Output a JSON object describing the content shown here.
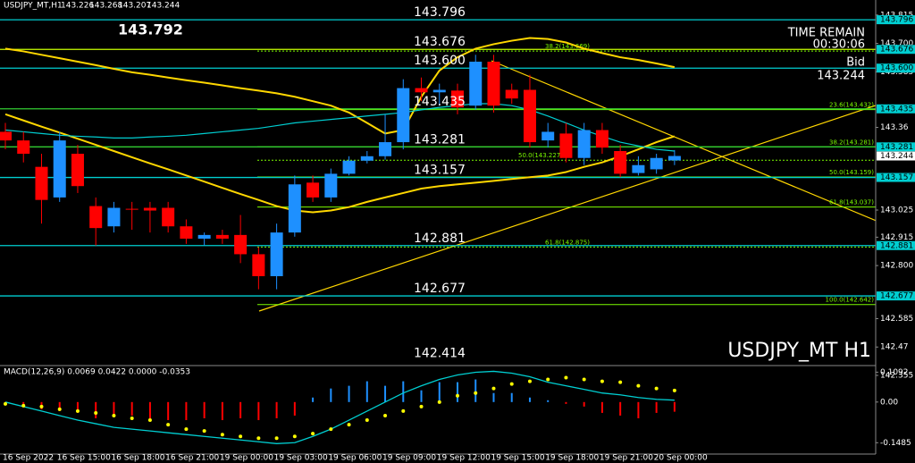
{
  "chart_data": [
    {
      "type": "candlestick",
      "symbol": "USDJPY_MT,H1",
      "max_label": "143.792",
      "time_remain_label": "TIME REMAIN",
      "time_remain": "00:30:06",
      "bid_label": "Bid",
      "watermark": "USDJPY_MT H1",
      "categories": [
        "16 Sep 2022",
        null,
        null,
        "16 Sep 15:00",
        null,
        null,
        "16 Sep 18:00",
        null,
        null,
        "16 Sep 21:00",
        null,
        null,
        "19 Sep 00:00",
        null,
        null,
        "19 Sep 03:00",
        null,
        null,
        "19 Sep 06:00",
        null,
        null,
        "19 Sep 09:00",
        null,
        null,
        "19 Sep 12:00",
        null,
        null,
        "19 Sep 15:00",
        null,
        null,
        "19 Sep 18:00",
        null,
        null,
        "19 Sep 21:00",
        null,
        null,
        "20 Sep 00:00",
        null
      ],
      "open": [
        143.342,
        143.307,
        143.2,
        143.076,
        143.253,
        143.041,
        142.959,
        143.03,
        143.034,
        143.034,
        142.959,
        142.909,
        142.924,
        142.924,
        142.846,
        142.757,
        142.934,
        143.136,
        143.076,
        143.172,
        143.225,
        143.243,
        143.3,
        143.519,
        143.502,
        143.509,
        143.448,
        143.626,
        143.512,
        143.512,
        143.307,
        143.335,
        143.236,
        143.349,
        143.264,
        143.175,
        143.19,
        143.226
      ],
      "high": [
        143.378,
        143.342,
        143.253,
        143.342,
        143.289,
        143.076,
        143.058,
        143.058,
        143.058,
        143.058,
        142.987,
        142.934,
        142.945,
        143.005,
        142.874,
        142.97,
        143.165,
        143.165,
        143.193,
        143.243,
        143.264,
        143.413,
        143.555,
        143.562,
        143.537,
        143.537,
        143.654,
        143.654,
        143.537,
        143.573,
        143.378,
        143.378,
        143.378,
        143.378,
        143.289,
        143.243,
        143.253,
        143.268
      ],
      "low": [
        143.271,
        143.218,
        142.97,
        143.058,
        143.094,
        142.881,
        142.934,
        142.945,
        142.934,
        142.934,
        142.888,
        142.881,
        142.888,
        142.81,
        142.704,
        142.704,
        142.917,
        143.058,
        143.058,
        143.165,
        143.214,
        143.229,
        143.271,
        143.466,
        143.448,
        143.413,
        143.431,
        143.42,
        143.456,
        143.278,
        143.278,
        143.218,
        143.207,
        143.253,
        143.158,
        143.165,
        143.172,
        143.207
      ],
      "close": [
        143.307,
        143.253,
        143.066,
        143.307,
        143.122,
        142.952,
        143.034,
        143.027,
        143.023,
        142.959,
        142.909,
        142.924,
        142.909,
        142.846,
        142.757,
        142.934,
        143.129,
        143.076,
        143.172,
        143.225,
        143.243,
        143.3,
        143.519,
        143.502,
        143.512,
        143.441,
        143.626,
        143.448,
        143.477,
        143.3,
        143.342,
        143.236,
        143.349,
        143.278,
        143.172,
        143.207,
        143.236,
        143.244
      ],
      "up_color": "#1e90ff",
      "down_color": "#ff0000",
      "ylim": [
        142.355,
        143.876
      ],
      "yticks": [
        143.815,
        {
          "value": 143.7,
          "label": "143.700"
        },
        143.585,
        143.36,
        143.025,
        142.915,
        {
          "value": 142.8,
          "label": "142.800"
        },
        142.585,
        142.47,
        142.355
      ],
      "levels": [
        143.796,
        143.676,
        {
          "value": 143.6,
          "label": "143.600"
        },
        143.435,
        143.281,
        143.157,
        142.881,
        142.677,
        142.414
      ],
      "level_colors": [
        "#00ced1",
        "#c8ff00",
        "#00ced1",
        "#32cd32",
        "#32cd32",
        "#00ced1",
        "#00ced1",
        "#00ced1",
        "#000000"
      ],
      "tag_color": "#00ced1",
      "fib_levels": [
        {
          "value": 143.669,
          "label": "38.2(143.669)"
        },
        {
          "value": 143.432,
          "label": "23.6(143.432)"
        },
        {
          "value": 143.281,
          "label": "38.2(143.281)"
        },
        {
          "value": 143.227,
          "label": "50.0(143.227)"
        },
        {
          "value": 143.159,
          "label": "50.0(143.159)"
        },
        {
          "value": 143.037,
          "label": "61.8(143.037)"
        },
        {
          "value": 142.875,
          "label": "61.8(142.875)"
        },
        {
          "value": 142.642,
          "label": "100.0(142.642)"
        }
      ],
      "fib_color": "#7cfc00",
      "series": [
        {
          "color": "#ffd700",
          "values": [
            143.679,
            143.668,
            143.654,
            143.64,
            143.626,
            143.612,
            143.597,
            143.583,
            143.573,
            143.562,
            143.551,
            143.541,
            143.53,
            143.519,
            143.509,
            143.498,
            143.484,
            143.466,
            143.448,
            143.42,
            143.378,
            143.335,
            143.349,
            143.484,
            143.59,
            143.644,
            143.679,
            143.697,
            143.711,
            143.722,
            143.718,
            143.704,
            143.679,
            143.661,
            143.644,
            143.633,
            143.619,
            143.604
          ]
        },
        {
          "color": "#ffd700",
          "values": [
            143.413,
            143.388,
            143.363,
            143.339,
            143.314,
            143.289,
            143.264,
            143.239,
            143.214,
            143.19,
            143.165,
            143.14,
            143.115,
            143.09,
            143.066,
            143.041,
            143.023,
            143.016,
            143.023,
            143.037,
            143.058,
            143.076,
            143.094,
            143.112,
            143.122,
            143.129,
            143.136,
            143.143,
            143.151,
            143.158,
            143.165,
            143.179,
            143.2,
            143.218,
            143.243,
            143.271,
            143.3,
            143.324
          ]
        },
        {
          "color": "#00ced1",
          "values": [
            143.349,
            143.342,
            143.335,
            143.328,
            143.324,
            143.321,
            143.317,
            143.317,
            143.321,
            143.324,
            143.328,
            143.335,
            143.342,
            143.349,
            143.356,
            143.367,
            143.378,
            143.385,
            143.392,
            143.399,
            143.406,
            143.413,
            143.42,
            143.431,
            143.441,
            143.448,
            143.456,
            143.456,
            143.448,
            143.431,
            143.406,
            143.378,
            143.349,
            143.324,
            143.3,
            143.285,
            143.271,
            143.264
          ]
        }
      ]
    },
    {
      "type": "macd",
      "title": "MACD(12,26,9) 0.0069 0.0422 0.0000 -0.0353",
      "values": [
        -0.0066,
        -0.0165,
        -0.0264,
        -0.033,
        -0.0396,
        -0.0594,
        -0.0495,
        -0.0495,
        -0.0594,
        -0.066,
        -0.066,
        -0.0594,
        -0.066,
        -0.0594,
        -0.066,
        -0.0594,
        -0.0495,
        0.0165,
        0.0495,
        0.0594,
        0.0759,
        0.0594,
        0.0759,
        0.0429,
        0.0726,
        0.0726,
        0.0825,
        0.033,
        0.033,
        0.0165,
        0.0066,
        -0.0066,
        -0.0165,
        -0.0396,
        -0.0495,
        -0.0594,
        -0.0396,
        -0.0353
      ],
      "up_color": "#1e90ff",
      "down_color": "#ff0000",
      "signal": {
        "color": "#ffff00",
        "values": [
          -0.0066,
          -0.0132,
          -0.0165,
          -0.0264,
          -0.033,
          -0.0396,
          -0.0495,
          -0.0594,
          -0.066,
          -0.0825,
          -0.099,
          -0.1056,
          -0.1188,
          -0.1254,
          -0.132,
          -0.132,
          -0.1254,
          -0.1155,
          -0.099,
          -0.0825,
          -0.066,
          -0.0495,
          -0.033,
          -0.0165,
          0,
          0.0231,
          0.033,
          0.0495,
          0.066,
          0.0759,
          0.0825,
          0.0891,
          0.0825,
          0.0759,
          0.0726,
          0.0594,
          0.0495,
          0.0422
        ]
      },
      "series": [
        {
          "color": "#00ced1",
          "values": [
            0,
            -0.0165,
            -0.033,
            -0.0495,
            -0.066,
            -0.0792,
            -0.0924,
            -0.099,
            -0.1056,
            -0.1122,
            -0.1188,
            -0.1254,
            -0.132,
            -0.1386,
            -0.1452,
            -0.1518,
            -0.1485,
            -0.1254,
            -0.099,
            -0.066,
            -0.033,
            0,
            0.033,
            0.0594,
            0.0825,
            0.099,
            0.1089,
            0.1122,
            0.1056,
            0.0924,
            0.0726,
            0.0594,
            0.0462,
            0.033,
            0.0264,
            0.0165,
            0.0099,
            0.0069
          ]
        }
      ],
      "ylim": [
        -0.19,
        0.13
      ],
      "yticks": [
        0.1092,
        {
          "value": 0,
          "label": "0.00"
        },
        -0.1485
      ]
    }
  ]
}
